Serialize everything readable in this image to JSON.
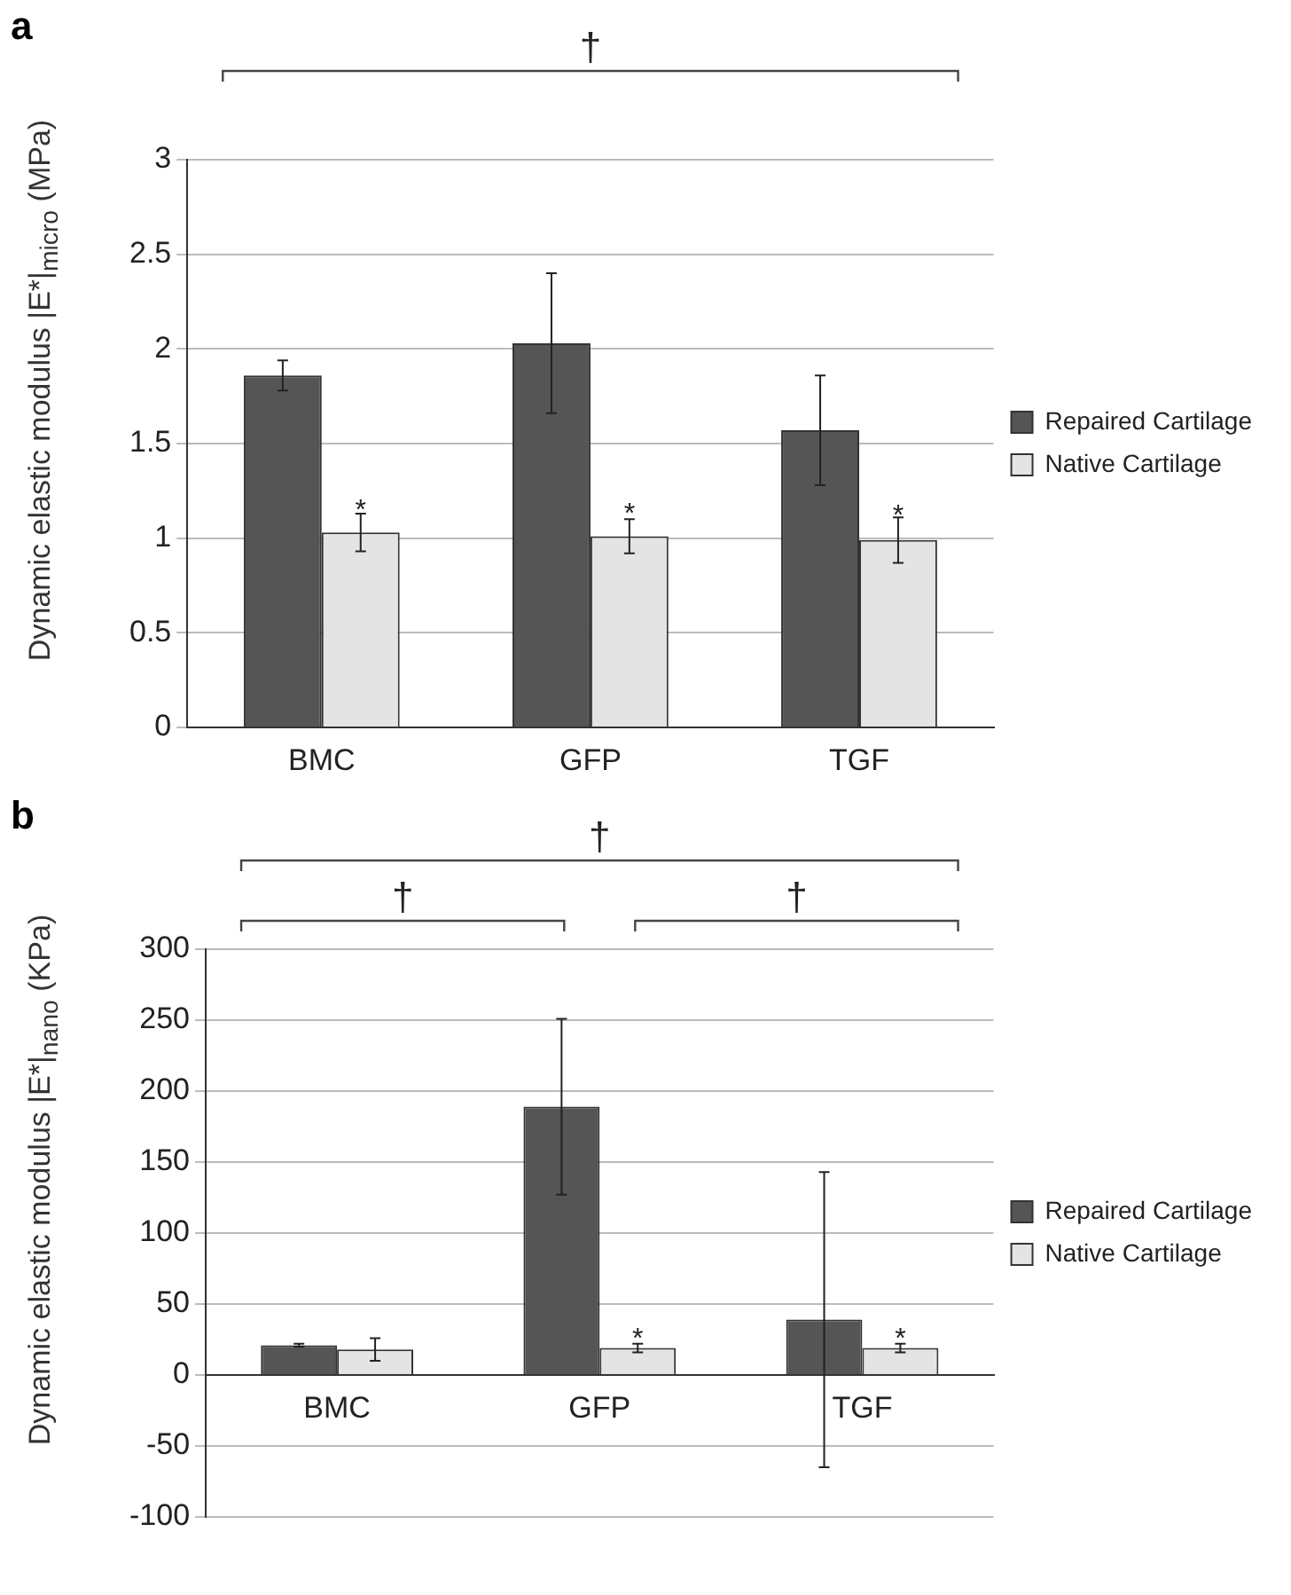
{
  "chart_data": [
    {
      "type": "bar",
      "title": "a",
      "ylabel": "Dynamic elastic modulus |E*|$_{micro}$ (MPa)",
      "categories": [
        "BMC",
        "GFP",
        "TGF"
      ],
      "series": [
        {
          "name": "Repaired Cartilage",
          "color": "#555555",
          "values": [
            1.86,
            2.03,
            1.57
          ],
          "errors": [
            0.08,
            0.37,
            0.29
          ]
        },
        {
          "name": "Native Cartilage",
          "color": "#e4e4e4",
          "values": [
            1.03,
            1.01,
            0.99
          ],
          "errors": [
            0.1,
            0.09,
            0.12
          ]
        }
      ],
      "ylim": [
        0,
        3
      ],
      "yticks": [
        0,
        0.5,
        1,
        1.5,
        2,
        2.5,
        3
      ],
      "grid": "y",
      "legend": "right",
      "annotations": [
        {
          "text": "*",
          "x": "BMC",
          "y": 1.18
        },
        {
          "text": "*",
          "x": "GFP",
          "y": 1.16
        },
        {
          "text": "*",
          "x": "TGF",
          "y": 1.15
        },
        "†"
      ]
    },
    {
      "type": "bar",
      "title": "b",
      "ylabel": "Dynamic elastic modulus |E*|$_{nano}$ (KPa)",
      "categories": [
        "BMC",
        "GFP",
        "TGF"
      ],
      "series": [
        {
          "name": "Repaired Cartilage",
          "color": "#555555",
          "values": [
            21,
            189,
            39
          ],
          "errors": [
            1,
            62,
            104
          ]
        },
        {
          "name": "Native Cartilage",
          "color": "#e4e4e4",
          "values": [
            18,
            19,
            19
          ],
          "errors": [
            8,
            3,
            3
          ]
        }
      ],
      "ylim": [
        -100,
        300
      ],
      "yticks": [
        -100,
        -50,
        0,
        50,
        100,
        150,
        200,
        250,
        300
      ],
      "grid": "y",
      "legend": "right",
      "annotations": [
        {
          "text": "*",
          "x": "GFP",
          "y": 30
        },
        {
          "text": "*",
          "x": "TGF",
          "y": 30
        },
        "†",
        "†",
        "†"
      ]
    }
  ]
}
